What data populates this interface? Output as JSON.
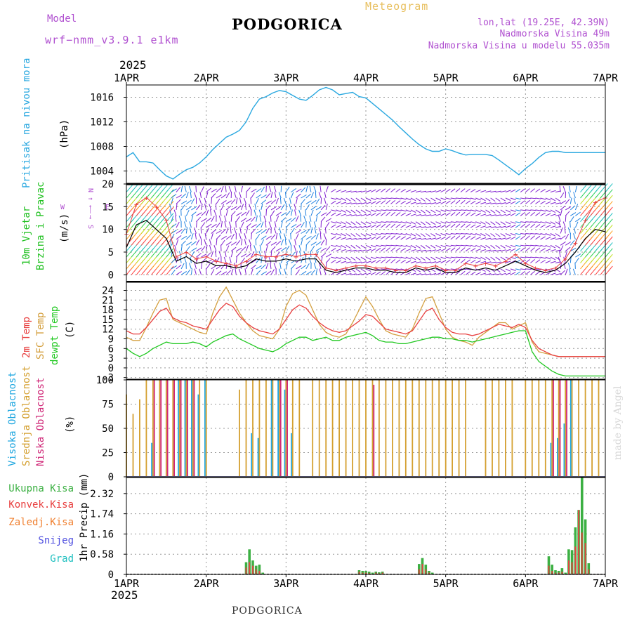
{
  "header": {
    "model_label": "Model",
    "model_name": "wrf−nmm_v3.9.1  e1km",
    "station": "PODGORICA",
    "product": "Meteogram",
    "lonlat": "lon,lat (19.25E, 42.39N)",
    "elevation": "Nadmorska Visina 49m",
    "model_elevation": "Nadmorska Visina u modelu 55.035m",
    "footer_station": "PODGORICA",
    "watermark": "made by Angel",
    "year_top": "2025",
    "year_bottom": "2025"
  },
  "colors": {
    "pressure": "#2aa8e0",
    "temp2m": "#e84040",
    "sfc_temp": "#d4a040",
    "dewpoint": "#20c820",
    "cloud_high": "#22a8e0",
    "cloud_mid": "#d4a030",
    "cloud_low": "#d02878",
    "precip_total": "#3cb043",
    "precip_conv": "#e84040",
    "precip_strat": "#f08030",
    "precip_snow": "#5050e0",
    "precip_hail": "#20c0c0",
    "model_label": "#b050d0",
    "product": "#e8c060",
    "wind_axis_label": "#b050d0"
  },
  "chart_data": [
    {
      "id": "pressure",
      "type": "line",
      "x_ticks": [
        "1APR",
        "2APR",
        "3APR",
        "4APR",
        "5APR",
        "6APR",
        "7APR"
      ],
      "ylabel_name": "Pritisak na nivou mora",
      "ylabel_unit": "(hPa)",
      "y_ticks": [
        "1004",
        "1008",
        "1012",
        "1016"
      ],
      "ylim": [
        1002,
        1018
      ],
      "x": [
        0,
        2,
        4,
        6,
        8,
        10,
        12,
        14,
        16,
        18,
        20,
        22,
        24,
        26,
        28,
        30,
        32,
        34,
        36,
        38,
        40,
        42,
        44,
        46,
        48,
        50,
        52,
        54,
        56,
        58,
        60,
        62,
        64,
        66,
        68,
        70,
        72,
        74,
        76,
        78,
        80,
        82,
        84,
        86,
        88,
        90,
        92,
        94,
        96,
        98,
        100,
        102,
        104,
        106,
        108,
        110,
        112,
        114,
        116,
        118,
        120,
        122,
        124,
        126,
        128,
        130,
        132,
        134,
        136,
        138,
        140,
        142,
        144
      ],
      "series": [
        {
          "values": [
            1006.3,
            1007.0,
            1005.5,
            1005.5,
            1005.3,
            1004.2,
            1003.2,
            1002.7,
            1003.5,
            1004.2,
            1004.6,
            1005.3,
            1006.3,
            1007.5,
            1008.5,
            1009.5,
            1010.0,
            1010.6,
            1012.0,
            1014.2,
            1015.7,
            1016.1,
            1016.7,
            1017.1,
            1016.9,
            1016.3,
            1015.7,
            1015.5,
            1016.3,
            1017.2,
            1017.6,
            1017.2,
            1016.4,
            1016.6,
            1016.8,
            1016.1,
            1015.9,
            1015.0,
            1014.1,
            1013.2,
            1012.3,
            1011.2,
            1010.2,
            1009.2,
            1008.3,
            1007.6,
            1007.2,
            1007.2,
            1007.6,
            1007.3,
            1006.9,
            1006.6,
            1006.7,
            1006.7,
            1006.7,
            1006.5,
            1005.8,
            1005.0,
            1004.2,
            1003.4,
            1004.4,
            1005.2,
            1006.2,
            1007.0,
            1007.2,
            1007.2,
            1007.0,
            1007.0,
            1007.0,
            1007.0,
            1007.0,
            1007.0,
            1007.0
          ]
        }
      ]
    },
    {
      "id": "wind",
      "type": "line",
      "ylabel_name": "10m Vjetar Brzina i Pravac",
      "ylabel_lines": [
        "10m Vjetar",
        "Brzina i Pravac"
      ],
      "ylabel_unit": "(m/s)",
      "direction_key": [
        "N",
        "↑",
        "←",
        "—",
        "→",
        "E",
        "W",
        "S"
      ],
      "y_ticks": [
        "0",
        "5",
        "10",
        "15",
        "20"
      ],
      "ylim": [
        -1.5,
        20
      ],
      "x": [
        0,
        3,
        6,
        9,
        12,
        15,
        18,
        21,
        24,
        27,
        30,
        33,
        36,
        39,
        42,
        45,
        48,
        51,
        54,
        57,
        60,
        63,
        66,
        69,
        72,
        75,
        78,
        81,
        84,
        87,
        90,
        93,
        96,
        99,
        102,
        105,
        108,
        111,
        114,
        117,
        120,
        123,
        126,
        129,
        132,
        135,
        138,
        141,
        144
      ],
      "series": [
        {
          "values": [
            6.0,
            11.0,
            12.0,
            10.0,
            8.0,
            3.0,
            4.0,
            2.5,
            3.0,
            2.0,
            2.0,
            1.5,
            2.0,
            3.5,
            3.0,
            3.0,
            3.5,
            3.0,
            3.5,
            3.5,
            1.0,
            0.5,
            1.0,
            1.5,
            1.5,
            1.0,
            1.0,
            0.5,
            0.5,
            1.5,
            1.0,
            1.5,
            0.5,
            0.5,
            1.5,
            1.0,
            1.5,
            1.0,
            2.0,
            3.0,
            2.0,
            1.0,
            0.5,
            1.0,
            2.5,
            5.0,
            8.0,
            10.0,
            9.5
          ]
        },
        {
          "values": [
            9.0,
            15.5,
            17.0,
            15.0,
            12.0,
            4.0,
            5.0,
            3.5,
            4.0,
            3.0,
            2.5,
            2.0,
            3.0,
            4.5,
            4.0,
            4.0,
            4.5,
            4.0,
            4.5,
            4.5,
            1.5,
            1.0,
            1.5,
            2.0,
            2.0,
            1.5,
            1.5,
            1.0,
            1.0,
            2.0,
            1.5,
            2.0,
            1.0,
            1.0,
            2.5,
            2.0,
            2.5,
            2.0,
            3.0,
            4.5,
            2.5,
            1.5,
            1.0,
            1.5,
            3.5,
            7.0,
            12.0,
            16.0,
            17.0
          ]
        }
      ]
    },
    {
      "id": "temperature",
      "type": "line",
      "ylabel_lines": [
        {
          "text": "2m Temp",
          "color": "#e84040"
        },
        {
          "text": "SFC Temp",
          "color": "#d4a040"
        },
        {
          "text": "dewpt Temp",
          "color": "#20c820"
        }
      ],
      "ylabel_unit": "(C)",
      "y_ticks": [
        "-3",
        "0",
        "3",
        "6",
        "9",
        "12",
        "15",
        "18",
        "21",
        "24"
      ],
      "ylim": [
        -3.5,
        26.5
      ],
      "x": [
        0,
        2,
        4,
        6,
        8,
        10,
        12,
        14,
        16,
        18,
        20,
        22,
        24,
        26,
        28,
        30,
        32,
        34,
        36,
        38,
        40,
        42,
        44,
        46,
        48,
        50,
        52,
        54,
        56,
        58,
        60,
        62,
        64,
        66,
        68,
        70,
        72,
        74,
        76,
        78,
        80,
        82,
        84,
        86,
        88,
        90,
        92,
        94,
        96,
        98,
        100,
        102,
        104,
        106,
        108,
        110,
        112,
        114,
        116,
        118,
        120,
        122,
        124,
        126,
        128,
        130,
        132,
        134,
        136,
        138,
        140,
        142,
        144
      ],
      "series": [
        {
          "name": "2m Temp",
          "values": [
            11.5,
            10.5,
            10.5,
            12.5,
            15.0,
            17.5,
            18.5,
            15.5,
            14.5,
            14.0,
            13.0,
            12.5,
            12.0,
            15.0,
            18.0,
            20.0,
            19.0,
            16.0,
            14.0,
            12.5,
            11.5,
            11.0,
            10.5,
            12.0,
            15.0,
            18.0,
            19.5,
            18.5,
            16.0,
            14.0,
            12.5,
            11.5,
            11.0,
            11.5,
            13.0,
            14.5,
            16.5,
            16.0,
            14.0,
            12.0,
            11.5,
            11.0,
            10.5,
            11.5,
            14.5,
            17.5,
            18.5,
            15.0,
            12.5,
            11.0,
            10.5,
            10.5,
            10.0,
            10.5,
            11.5,
            12.5,
            13.5,
            13.0,
            12.5,
            13.5,
            12.5,
            8.5,
            6.0,
            5.0,
            4.0,
            3.5,
            3.5,
            3.5,
            3.5,
            3.5,
            3.5,
            3.5,
            3.5
          ]
        },
        {
          "name": "SFC Temp",
          "values": [
            9.5,
            8.5,
            8.5,
            12.5,
            17.0,
            21.0,
            21.5,
            15.0,
            14.0,
            13.0,
            12.0,
            11.0,
            10.5,
            17.0,
            22.0,
            25.0,
            21.0,
            17.0,
            14.0,
            11.5,
            10.0,
            9.5,
            9.0,
            12.0,
            19.0,
            23.0,
            24.0,
            22.5,
            18.0,
            13.5,
            11.0,
            10.0,
            9.5,
            10.5,
            14.0,
            18.0,
            22.0,
            19.0,
            15.0,
            11.5,
            10.5,
            10.0,
            9.5,
            12.0,
            17.0,
            21.5,
            22.0,
            17.0,
            12.0,
            9.5,
            8.5,
            8.0,
            7.0,
            9.5,
            11.0,
            12.5,
            14.0,
            14.0,
            12.0,
            13.0,
            14.0,
            8.0,
            5.0,
            4.5,
            4.0,
            3.5,
            3.5,
            3.5,
            3.5,
            3.5,
            3.5,
            3.5,
            3.5
          ]
        },
        {
          "name": "dewpt Temp",
          "values": [
            6.0,
            4.5,
            3.5,
            4.5,
            6.0,
            7.0,
            8.0,
            7.5,
            7.5,
            7.5,
            8.0,
            7.5,
            6.5,
            8.0,
            9.0,
            10.0,
            10.5,
            9.0,
            8.0,
            7.0,
            6.0,
            5.5,
            5.0,
            6.0,
            7.5,
            8.5,
            9.5,
            9.5,
            8.5,
            9.0,
            9.5,
            8.5,
            8.5,
            9.5,
            10.0,
            10.5,
            11.0,
            10.0,
            8.5,
            8.0,
            8.0,
            7.5,
            7.5,
            8.0,
            8.5,
            9.0,
            9.5,
            9.5,
            9.0,
            9.0,
            8.5,
            8.5,
            8.0,
            8.5,
            9.0,
            9.5,
            10.0,
            10.5,
            11.0,
            11.5,
            11.5,
            5.0,
            2.0,
            0.5,
            -1.0,
            -2.0,
            -2.5,
            -2.5,
            -2.5,
            -2.5,
            -2.5,
            -2.5,
            -2.5
          ]
        }
      ]
    },
    {
      "id": "clouds",
      "type": "bar",
      "ylabel_lines": [
        {
          "text": "Visoka Oblacnost",
          "color": "#22a8e0"
        },
        {
          "text": "Srednja Oblacnost",
          "color": "#d4a030"
        },
        {
          "text": "Niska Oblacnost",
          "color": "#d02878"
        }
      ],
      "ylabel_unit": "(%)",
      "y_ticks": [
        "0",
        "25",
        "50",
        "75",
        "100"
      ],
      "ylim": [
        0,
        100
      ],
      "x": [
        0,
        2,
        4,
        6,
        8,
        10,
        12,
        14,
        16,
        18,
        20,
        22,
        24,
        26,
        28,
        30,
        32,
        34,
        36,
        38,
        40,
        42,
        44,
        46,
        48,
        50,
        52,
        54,
        56,
        58,
        60,
        62,
        64,
        66,
        68,
        70,
        72,
        74,
        76,
        78,
        80,
        82,
        84,
        86,
        88,
        90,
        92,
        94,
        96,
        98,
        100,
        102,
        104,
        106,
        108,
        110,
        112,
        114,
        116,
        118,
        120,
        122,
        124,
        126,
        128,
        130,
        132,
        134,
        136,
        138,
        140,
        142,
        144
      ],
      "series": [
        {
          "name": "Visoka Oblacnost",
          "values": [
            0,
            0,
            0,
            0,
            35,
            0,
            0,
            0,
            100,
            100,
            100,
            85,
            100,
            0,
            0,
            0,
            0,
            0,
            0,
            45,
            40,
            0,
            100,
            100,
            90,
            45,
            0,
            0,
            0,
            0,
            0,
            0,
            0,
            0,
            0,
            0,
            0,
            0,
            0,
            0,
            0,
            0,
            0,
            0,
            0,
            0,
            0,
            0,
            0,
            0,
            0,
            0,
            0,
            0,
            0,
            0,
            0,
            0,
            0,
            0,
            0,
            0,
            0,
            0,
            35,
            40,
            55,
            100,
            0,
            0,
            0,
            0,
            0
          ]
        },
        {
          "name": "Srednja Oblacnost",
          "values": [
            85,
            65,
            80,
            100,
            100,
            100,
            100,
            100,
            100,
            100,
            100,
            100,
            100,
            0,
            0,
            0,
            0,
            90,
            100,
            100,
            100,
            100,
            100,
            100,
            100,
            100,
            100,
            0,
            100,
            100,
            100,
            100,
            100,
            100,
            100,
            100,
            100,
            100,
            100,
            100,
            100,
            100,
            100,
            100,
            100,
            100,
            100,
            100,
            100,
            100,
            100,
            100,
            0,
            0,
            100,
            100,
            100,
            100,
            100,
            0,
            100,
            100,
            100,
            100,
            100,
            100,
            100,
            100,
            100,
            100,
            100,
            100,
            0
          ]
        },
        {
          "name": "Niska Oblacnost",
          "values": [
            0,
            0,
            0,
            0,
            100,
            100,
            100,
            100,
            100,
            100,
            100,
            0,
            0,
            0,
            0,
            0,
            0,
            0,
            0,
            0,
            0,
            0,
            0,
            100,
            100,
            0,
            0,
            0,
            0,
            0,
            0,
            0,
            0,
            0,
            0,
            0,
            0,
            95,
            0,
            0,
            0,
            0,
            0,
            0,
            0,
            0,
            0,
            0,
            0,
            0,
            0,
            0,
            0,
            0,
            0,
            0,
            0,
            0,
            0,
            0,
            0,
            0,
            0,
            0,
            100,
            100,
            100,
            0,
            0,
            0,
            0,
            0,
            0
          ]
        }
      ]
    },
    {
      "id": "precip",
      "type": "bar",
      "ylabel_name": "1hr Precip (mm)",
      "legend": [
        {
          "text": "Ukupna Kisa",
          "color": "#3cb043"
        },
        {
          "text": "Konvek.Kisa",
          "color": "#e84040"
        },
        {
          "text": "Zaledj.Kisa",
          "color": "#f08030"
        },
        {
          "text": "Snijeg",
          "color": "#5050e0"
        },
        {
          "text": "Grad",
          "color": "#20c0c0"
        }
      ],
      "y_ticks": [
        "0",
        "0.58",
        "1.16",
        "1.74",
        "2.32"
      ],
      "ylim": [
        0,
        2.78
      ],
      "x": [
        36,
        37,
        38,
        39,
        40,
        41,
        70,
        71,
        72,
        73,
        74,
        75,
        76,
        77,
        88,
        89,
        90,
        91,
        92,
        127,
        128,
        129,
        130,
        131,
        132,
        133,
        134,
        135,
        136,
        137,
        138,
        139
      ],
      "series": [
        {
          "name": "Ukupna Kisa",
          "values": [
            0.35,
            0.72,
            0.4,
            0.25,
            0.28,
            0.05,
            0.12,
            0.1,
            0.1,
            0.08,
            0.05,
            0.08,
            0.06,
            0.08,
            0.3,
            0.47,
            0.28,
            0.1,
            0.05,
            0.52,
            0.28,
            0.12,
            0.1,
            0.18,
            0.05,
            0.72,
            0.7,
            1.35,
            1.85,
            2.78,
            1.58,
            0.32
          ]
        },
        {
          "name": "Konvek.Kisa",
          "values": [
            0.2,
            0.35,
            0.25,
            0.15,
            0.1,
            0.0,
            0.08,
            0.05,
            0.05,
            0.04,
            0.02,
            0.05,
            0.03,
            0.05,
            0.15,
            0.3,
            0.15,
            0.05,
            0.02,
            0.25,
            0.1,
            0.05,
            0.05,
            0.08,
            0.02,
            0.4,
            0.35,
            0.8,
            1.85,
            1.2,
            0.9,
            0.15
          ]
        }
      ]
    }
  ]
}
